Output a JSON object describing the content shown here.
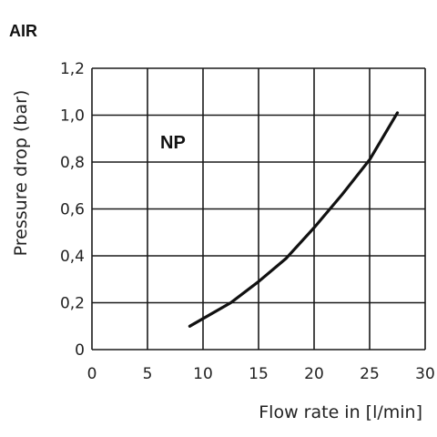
{
  "chart_data": {
    "type": "line",
    "title": "AIR",
    "xlabel": "Flow rate in [l/min]",
    "ylabel": "Pressure drop (bar)",
    "annotation": "NP",
    "xlim": [
      0,
      30
    ],
    "ylim": [
      0,
      1.2
    ],
    "x_ticks": [
      "0",
      "5",
      "10",
      "15",
      "20",
      "25",
      "30"
    ],
    "y_ticks": [
      "0",
      "0,2",
      "0,4",
      "0,6",
      "0,8",
      "1,0",
      "1,2"
    ],
    "grid": true,
    "series": [
      {
        "x": [
          8.8,
          12.5,
          15.0,
          17.5,
          20.0,
          22.5,
          25.0,
          27.5
        ],
        "y": [
          0.1,
          0.2,
          0.29,
          0.39,
          0.52,
          0.66,
          0.81,
          1.01
        ],
        "color": "#111111"
      }
    ]
  }
}
